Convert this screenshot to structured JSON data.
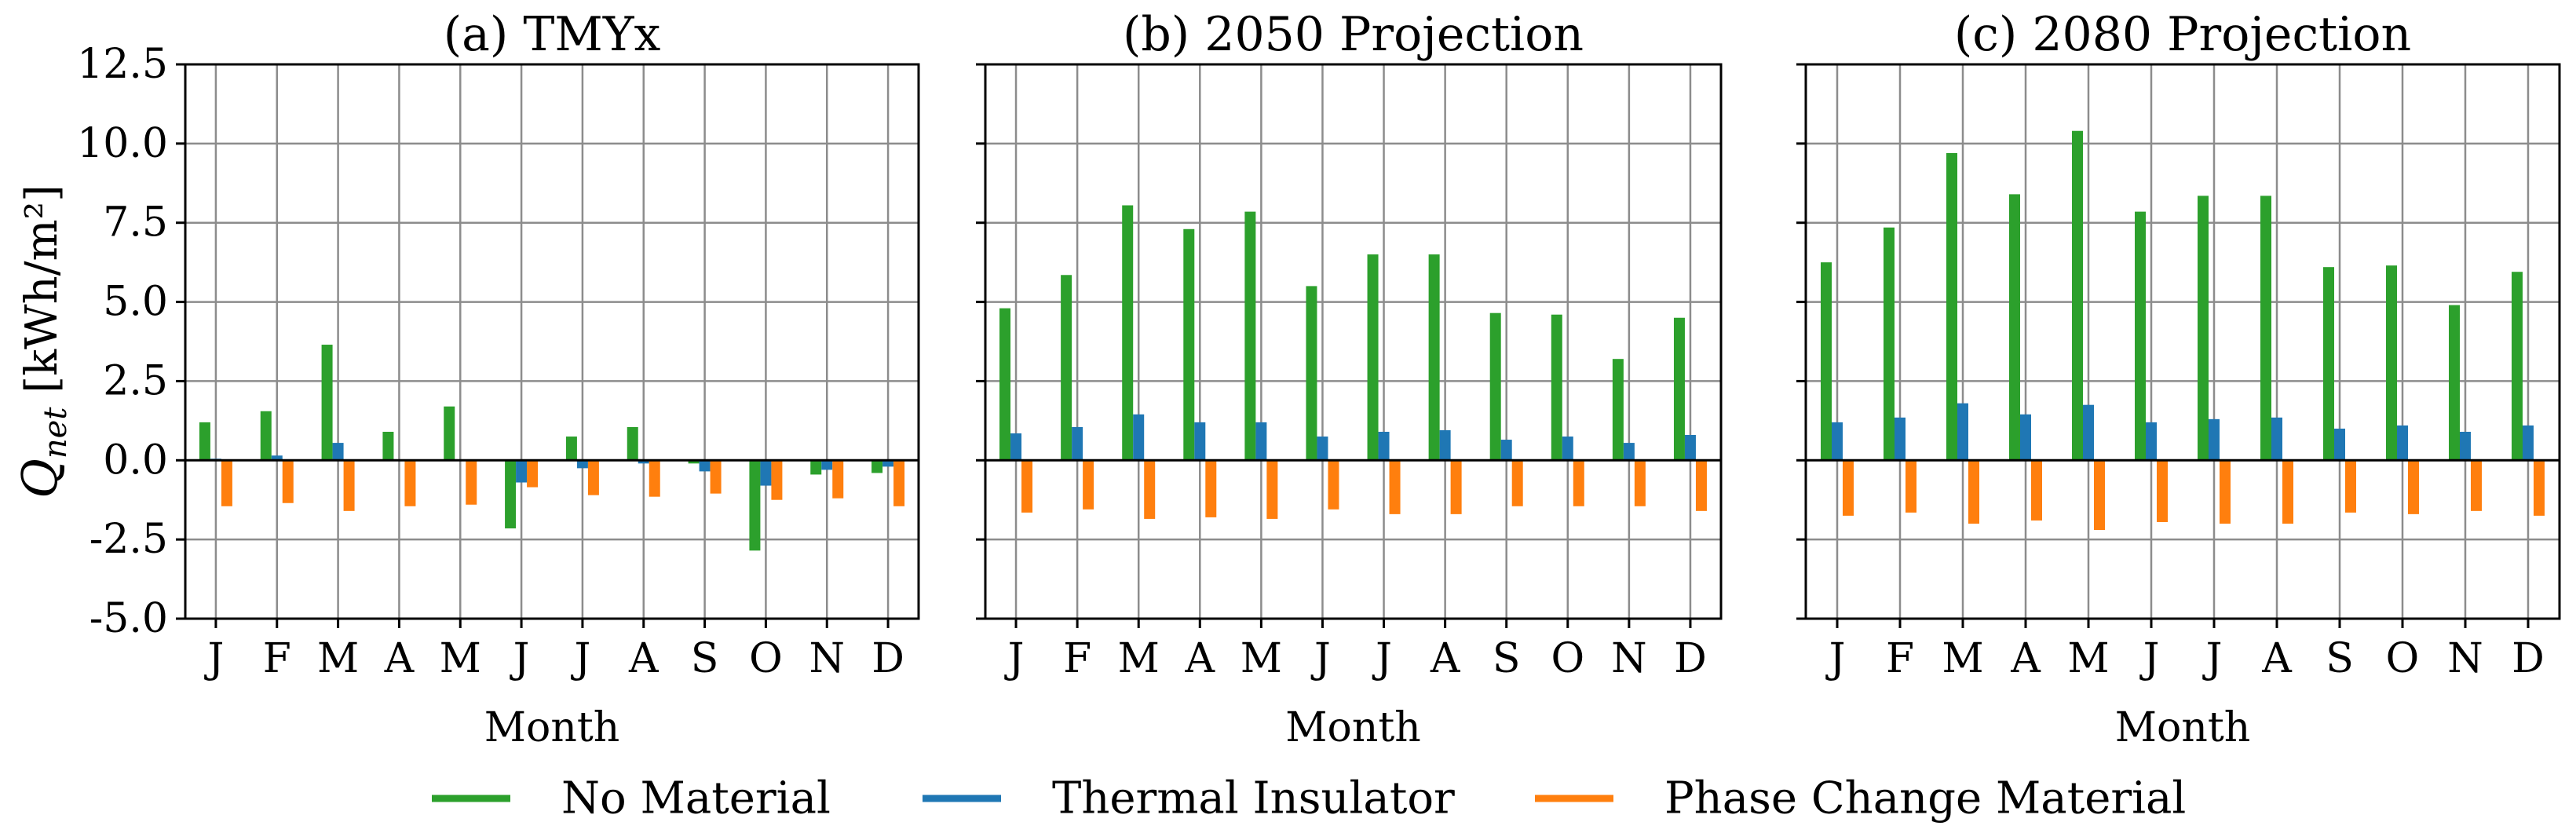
{
  "chart_data": [
    {
      "type": "bar",
      "title": "(a) TMYx",
      "xlabel": "Month",
      "ylabel_symbol": "Q",
      "ylabel_subscript": "net",
      "ylabel_units": " [kWh/m²]",
      "ylim": [
        -5.0,
        12.5
      ],
      "yticks": [
        -5.0,
        -2.5,
        0.0,
        2.5,
        5.0,
        7.5,
        10.0,
        12.5
      ],
      "ytick_labels": [
        "-5.0",
        "-2.5",
        "0.0",
        "2.5",
        "5.0",
        "7.5",
        "10.0",
        "12.5"
      ],
      "categories": [
        "J",
        "F",
        "M",
        "A",
        "M",
        "J",
        "J",
        "A",
        "S",
        "O",
        "N",
        "D"
      ],
      "grid": true,
      "series": [
        {
          "name": "No Material",
          "values": [
            1.2,
            1.55,
            3.65,
            0.9,
            1.7,
            -2.15,
            0.75,
            1.05,
            -0.1,
            -2.85,
            -0.45,
            -0.4
          ]
        },
        {
          "name": "Thermal Insulator",
          "values": [
            0.05,
            0.15,
            0.55,
            0.0,
            0.0,
            -0.7,
            -0.25,
            -0.1,
            -0.35,
            -0.8,
            -0.3,
            -0.2
          ]
        },
        {
          "name": "Phase Change Material",
          "values": [
            -1.45,
            -1.35,
            -1.6,
            -1.45,
            -1.4,
            -0.85,
            -1.1,
            -1.15,
            -1.05,
            -1.25,
            -1.2,
            -1.45
          ]
        }
      ]
    },
    {
      "type": "bar",
      "title": "(b) 2050 Projection",
      "xlabel": "Month",
      "ylim": [
        -5.0,
        12.5
      ],
      "yticks": [
        -5.0,
        -2.5,
        0.0,
        2.5,
        5.0,
        7.5,
        10.0,
        12.5
      ],
      "categories": [
        "J",
        "F",
        "M",
        "A",
        "M",
        "J",
        "J",
        "A",
        "S",
        "O",
        "N",
        "D"
      ],
      "grid": true,
      "series": [
        {
          "name": "No Material",
          "values": [
            4.8,
            5.85,
            8.05,
            7.3,
            7.85,
            5.5,
            6.5,
            6.5,
            4.65,
            4.6,
            3.2,
            4.5
          ]
        },
        {
          "name": "Thermal Insulator",
          "values": [
            0.85,
            1.05,
            1.45,
            1.2,
            1.2,
            0.75,
            0.9,
            0.95,
            0.65,
            0.75,
            0.55,
            0.8
          ]
        },
        {
          "name": "Phase Change Material",
          "values": [
            -1.65,
            -1.55,
            -1.85,
            -1.8,
            -1.85,
            -1.55,
            -1.7,
            -1.7,
            -1.45,
            -1.45,
            -1.45,
            -1.6
          ]
        }
      ]
    },
    {
      "type": "bar",
      "title": "(c) 2080 Projection",
      "xlabel": "Month",
      "ylim": [
        -5.0,
        12.5
      ],
      "yticks": [
        -5.0,
        -2.5,
        0.0,
        2.5,
        5.0,
        7.5,
        10.0,
        12.5
      ],
      "categories": [
        "J",
        "F",
        "M",
        "A",
        "M",
        "J",
        "J",
        "A",
        "S",
        "O",
        "N",
        "D"
      ],
      "grid": true,
      "series": [
        {
          "name": "No Material",
          "values": [
            6.25,
            7.35,
            9.7,
            8.4,
            10.4,
            7.85,
            8.35,
            8.35,
            6.1,
            6.15,
            4.9,
            5.95
          ]
        },
        {
          "name": "Thermal Insulator",
          "values": [
            1.2,
            1.35,
            1.8,
            1.45,
            1.75,
            1.2,
            1.3,
            1.35,
            1.0,
            1.1,
            0.9,
            1.1
          ]
        },
        {
          "name": "Phase Change Material",
          "values": [
            -1.75,
            -1.65,
            -2.0,
            -1.9,
            -2.2,
            -1.95,
            -2.0,
            -2.0,
            -1.65,
            -1.7,
            -1.6,
            -1.75
          ]
        }
      ]
    }
  ],
  "legend": {
    "position": "bottom-center",
    "items": [
      {
        "label": "No Material",
        "color": "#2ca02c"
      },
      {
        "label": "Thermal Insulator",
        "color": "#1f77b4"
      },
      {
        "label": "Phase Change Material",
        "color": "#ff7f0e"
      }
    ]
  }
}
